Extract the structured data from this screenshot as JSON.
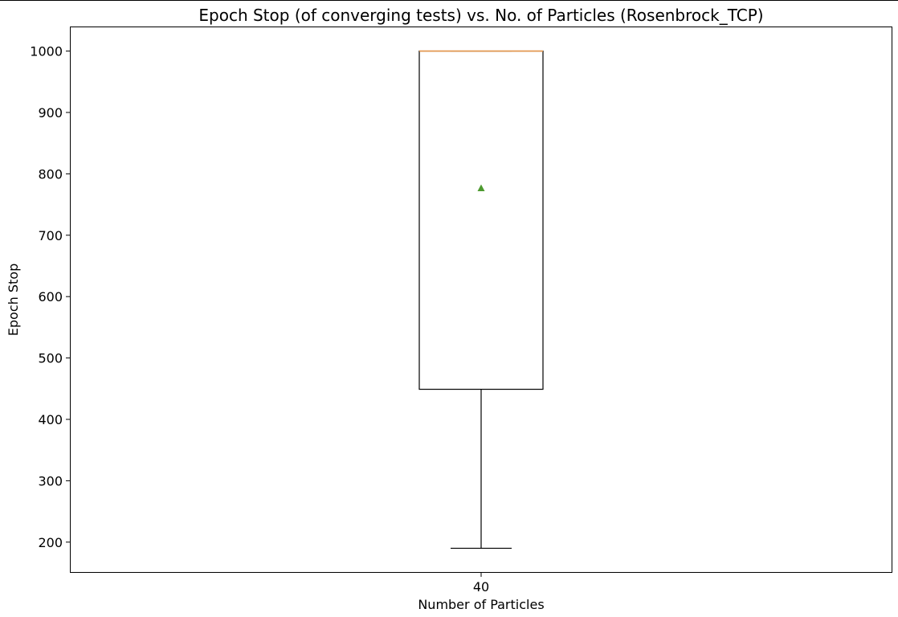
{
  "chart_data": {
    "type": "box",
    "title": "Epoch Stop (of converging tests) vs. No. of Particles (Rosenbrock_TCP)",
    "xlabel": "Number of Particles",
    "ylabel": "Epoch Stop",
    "categories": [
      "40"
    ],
    "ylim": [
      150,
      1040
    ],
    "yticks": [
      200,
      300,
      400,
      500,
      600,
      700,
      800,
      900,
      1000
    ],
    "grid": false,
    "boxes": [
      {
        "category": "40",
        "whisker_low": 190,
        "q1": 449,
        "median": 1000,
        "q3": 1000,
        "whisker_high": 1000,
        "mean": 777
      }
    ],
    "colors": {
      "box": "#000000",
      "median": "#e8994d",
      "mean": "#4d9a2f"
    }
  }
}
